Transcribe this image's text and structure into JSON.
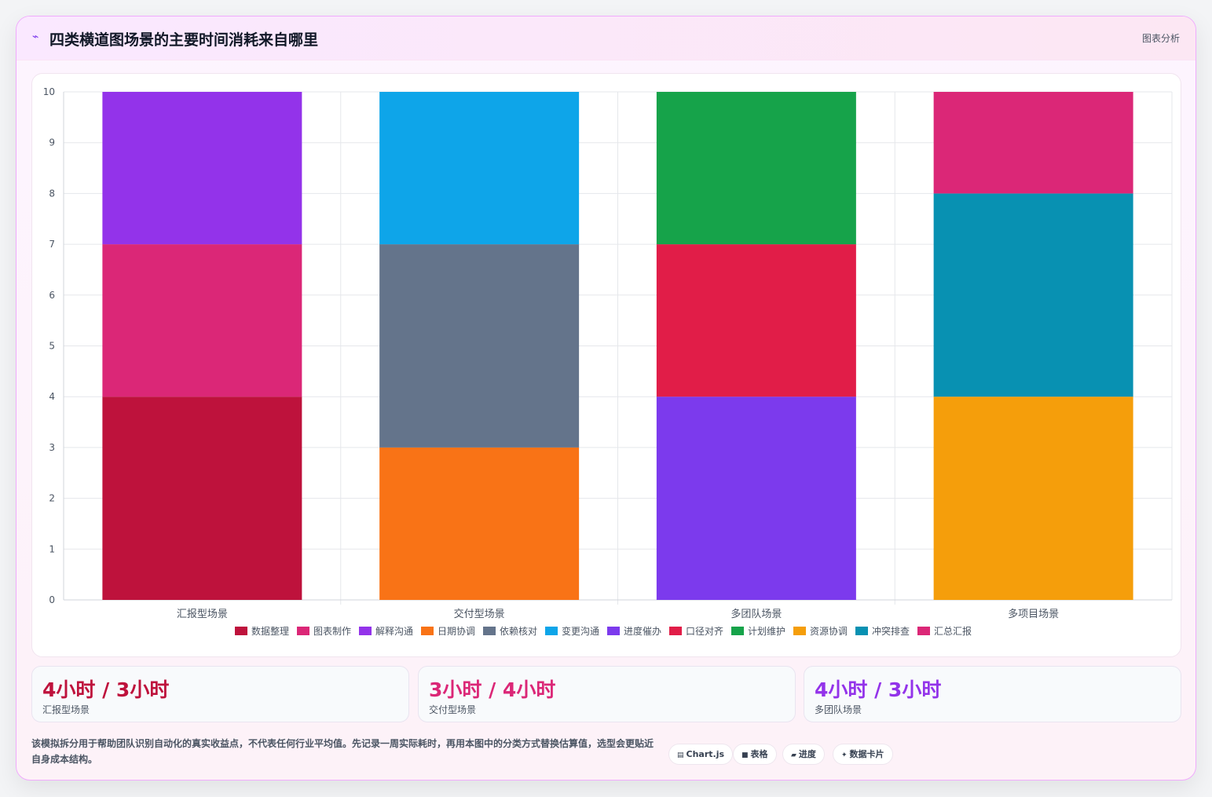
{
  "header": {
    "icon": "chart-wave-icon",
    "title": "四类横道图场景的主要时间消耗来自哪里",
    "tag": "图表分析"
  },
  "chart_data": {
    "type": "bar",
    "stacked": true,
    "categories": [
      "汇报型场景",
      "交付型场景",
      "多团队场景",
      "多项目场景"
    ],
    "ylim": [
      0,
      10
    ],
    "yticks": [
      0,
      1,
      2,
      3,
      4,
      5,
      6,
      7,
      8,
      9,
      10
    ],
    "grid": true,
    "legend_position": "bottom",
    "series": [
      {
        "name": "数据整理",
        "color": "#be123c",
        "values": [
          4,
          0,
          0,
          0
        ]
      },
      {
        "name": "图表制作",
        "color": "#db2777",
        "values": [
          3,
          0,
          0,
          0
        ]
      },
      {
        "name": "解释沟通",
        "color": "#9333ea",
        "values": [
          3,
          0,
          0,
          0
        ]
      },
      {
        "name": "日期协调",
        "color": "#f97316",
        "values": [
          0,
          3,
          0,
          0
        ]
      },
      {
        "name": "依赖核对",
        "color": "#64748b",
        "values": [
          0,
          4,
          0,
          0
        ]
      },
      {
        "name": "变更沟通",
        "color": "#0ea5e9",
        "values": [
          0,
          3,
          0,
          0
        ]
      },
      {
        "name": "进度催办",
        "color": "#7c3aed",
        "values": [
          0,
          0,
          4,
          0
        ]
      },
      {
        "name": "口径对齐",
        "color": "#e11d48",
        "values": [
          0,
          0,
          3,
          0
        ]
      },
      {
        "name": "计划维护",
        "color": "#16a34a",
        "values": [
          0,
          0,
          3,
          0
        ]
      },
      {
        "name": "资源协调",
        "color": "#f59e0b",
        "values": [
          0,
          0,
          0,
          4
        ]
      },
      {
        "name": "冲突排查",
        "color": "#0891b2",
        "values": [
          0,
          0,
          0,
          4
        ]
      },
      {
        "name": "汇总汇报",
        "color": "#db2777",
        "values": [
          0,
          0,
          0,
          2
        ]
      }
    ]
  },
  "stats": [
    {
      "value": "4小时 / 3小时",
      "label": "汇报型场景",
      "color": "#be123c"
    },
    {
      "value": "3小时 / 4小时",
      "label": "交付型场景",
      "color": "#db2777"
    },
    {
      "value": "4小时 / 3小时",
      "label": "多团队场景",
      "color": "#9333ea"
    }
  ],
  "footnote": "该模拟拆分用于帮助团队识别自动化的真实收益点，不代表任何行业平均值。先记录一周实际耗时，再用本图中的分类方式替换估算值，选型会更贴近自身成本结构。",
  "chips": [
    {
      "icon": "chart-icon",
      "glyph": "▤",
      "label": "Chart.js"
    },
    {
      "icon": "table-icon",
      "glyph": "■",
      "label": "表格"
    },
    {
      "icon": "progress-icon",
      "glyph": "▰",
      "label": "进度"
    },
    {
      "icon": "sparkle-icon",
      "glyph": "✦",
      "label": "数据卡片"
    }
  ]
}
